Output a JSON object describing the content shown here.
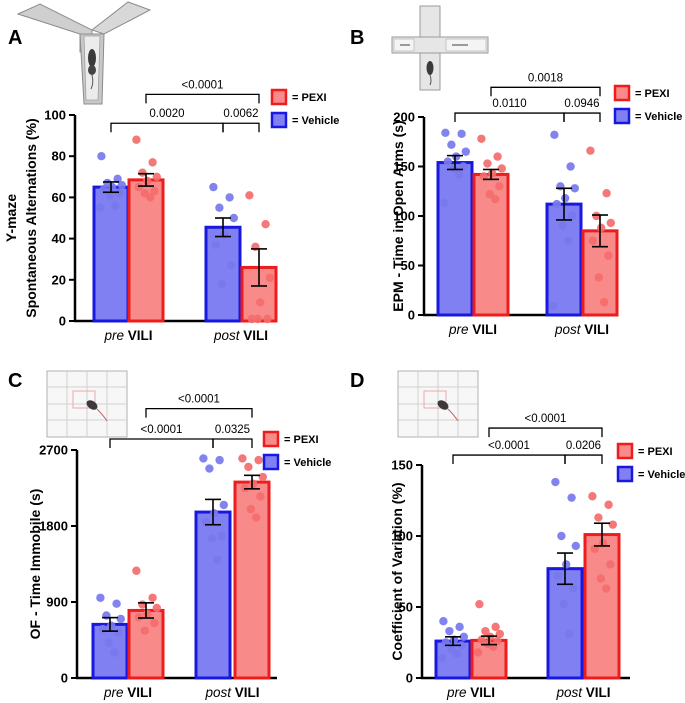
{
  "colors": {
    "vehicle_fill": "#8080f2",
    "vehicle_edge": "#1818e0",
    "vehicle_dot": "#7878ee",
    "pexi_fill": "#f88a8a",
    "pexi_edge": "#ee1c1c",
    "pexi_dot": "#f46c6c"
  },
  "chart_data": [
    {
      "panel": "A",
      "type": "bar",
      "ylabel_lines": [
        "Y-maze",
        "Spontaneous Alternations (%)"
      ],
      "ylim": [
        0,
        100
      ],
      "yticks": [
        0,
        20,
        40,
        60,
        80,
        100
      ],
      "groups": [
        {
          "pre": "pre",
          "post": "VILI"
        },
        {
          "pre": "post",
          "post": "VILI"
        }
      ],
      "series": [
        {
          "name": "Vehicle",
          "legend": "= Vehicle",
          "means": [
            65,
            45.5
          ],
          "sems": [
            2.5,
            4.5
          ],
          "points": [
            [
              80,
              69,
              67,
              66,
              65,
              64,
              62,
              61,
              56,
              55
            ],
            [
              65,
              60,
              55,
              50,
              42,
              37,
              27,
              18
            ]
          ]
        },
        {
          "name": "PEXI",
          "legend": "= PEXI",
          "means": [
            68.5,
            26
          ],
          "sems": [
            3,
            9
          ],
          "points": [
            [
              88,
              77,
              72,
              70,
              68,
              65,
              63,
              62,
              60
            ],
            [
              61,
              47,
              36,
              21,
              9,
              0,
              0,
              0
            ]
          ]
        }
      ],
      "comparisons": [
        {
          "label": "0.0020",
          "from": [
            0,
            "Vehicle"
          ],
          "to": [
            1,
            "Vehicle"
          ],
          "y": 96
        },
        {
          "label": "0.0062",
          "from": [
            1,
            "Vehicle"
          ],
          "to": [
            1,
            "PEXI"
          ],
          "y": 96
        },
        {
          "label": "<0.0001",
          "from": [
            0,
            "PEXI"
          ],
          "to": [
            1,
            "PEXI"
          ],
          "y": 110
        }
      ]
    },
    {
      "panel": "B",
      "type": "bar",
      "ylabel_lines": [
        "EPM - Time in Open Arms (s)"
      ],
      "ylim": [
        0,
        200
      ],
      "yticks": [
        0,
        50,
        100,
        150,
        200
      ],
      "groups": [
        {
          "pre": "pre",
          "post": "VILI"
        },
        {
          "pre": "post",
          "post": "VILI"
        }
      ],
      "series": [
        {
          "name": "Vehicle",
          "legend": "= Vehicle",
          "means": [
            154,
            112
          ],
          "sems": [
            7,
            16
          ],
          "points": [
            [
              184,
              183,
              172,
              165,
              160,
              155,
              150,
              148,
              142,
              113
            ],
            [
              182,
              150,
              130,
              128,
              118,
              112,
              100,
              90,
              75,
              9
            ]
          ]
        },
        {
          "name": "PEXI",
          "legend": "= PEXI",
          "means": [
            142,
            85
          ],
          "sems": [
            5,
            16
          ],
          "points": [
            [
              178,
              160,
              153,
              148,
              143,
              140,
              130,
              122,
              117
            ],
            [
              166,
              123,
              100,
              93,
              88,
              75,
              60,
              38,
              13
            ]
          ]
        }
      ],
      "comparisons": [
        {
          "label": "0.0110",
          "from": [
            0,
            "Vehicle"
          ],
          "to": [
            1,
            "Vehicle"
          ],
          "y": 204
        },
        {
          "label": "0.0946",
          "from": [
            1,
            "Vehicle"
          ],
          "to": [
            1,
            "PEXI"
          ],
          "y": 204
        },
        {
          "label": "0.0018",
          "from": [
            0,
            "PEXI"
          ],
          "to": [
            1,
            "PEXI"
          ],
          "y": 230
        }
      ]
    },
    {
      "panel": "C",
      "type": "bar",
      "ylabel_lines": [
        "OF - Time Immobile (s)"
      ],
      "ylim": [
        0,
        2700
      ],
      "yticks": [
        0,
        900,
        1800,
        2700
      ],
      "groups": [
        {
          "pre": "pre",
          "post": "VILI"
        },
        {
          "pre": "post",
          "post": "VILI"
        }
      ],
      "series": [
        {
          "name": "Vehicle",
          "legend": "= Vehicle",
          "means": [
            635,
            1965
          ],
          "sems": [
            80,
            150
          ],
          "points": [
            [
              950,
              880,
              740,
              700,
              620,
              580,
              540,
              420,
              300
            ],
            [
              2600,
              2580,
              2480,
              2050,
              1950,
              1850,
              1680,
              1650,
              1400
            ]
          ]
        },
        {
          "name": "PEXI",
          "legend": "= PEXI",
          "means": [
            800,
            2320
          ],
          "sems": [
            90,
            80
          ],
          "points": [
            [
              1270,
              950,
              870,
              830,
              760,
              720,
              650,
              560
            ],
            [
              2600,
              2580,
              2500,
              2380,
              2300,
              2250,
              2150,
              2000,
              1900
            ]
          ]
        }
      ],
      "comparisons": [
        {
          "label": "<0.0001",
          "from": [
            0,
            "Vehicle"
          ],
          "to": [
            1,
            "Vehicle"
          ],
          "y": 2830
        },
        {
          "label": "0.0325",
          "from": [
            1,
            "Vehicle"
          ],
          "to": [
            1,
            "PEXI"
          ],
          "y": 2830
        },
        {
          "label": "<0.0001",
          "from": [
            0,
            "PEXI"
          ],
          "to": [
            1,
            "PEXI"
          ],
          "y": 3190
        }
      ]
    },
    {
      "panel": "D",
      "type": "bar",
      "ylabel_lines": [
        "Coefficient of Variation (%)"
      ],
      "ylim": [
        0,
        150
      ],
      "yticks": [
        0,
        50,
        100,
        150
      ],
      "groups": [
        {
          "pre": "pre",
          "post": "VILI"
        },
        {
          "pre": "post",
          "post": "VILI"
        }
      ],
      "series": [
        {
          "name": "Vehicle",
          "legend": "= Vehicle",
          "means": [
            26,
            77
          ],
          "sems": [
            3,
            11
          ],
          "points": [
            [
              40,
              36,
              33,
              29,
              27,
              25,
              23,
              20,
              17,
              14
            ],
            [
              138,
              127,
              100,
              93,
              80,
              72,
              63,
              52,
              31
            ]
          ]
        },
        {
          "name": "PEXI",
          "legend": "= PEXI",
          "means": [
            26.5,
            101
          ],
          "sems": [
            3,
            8
          ],
          "points": [
            [
              52,
              36,
              33,
              31,
              29,
              27,
              26,
              24,
              22,
              18
            ],
            [
              128,
              122,
              113,
              108,
              95,
              91,
              80,
              70,
              63
            ]
          ]
        }
      ],
      "comparisons": [
        {
          "label": "<0.0001",
          "from": [
            0,
            "Vehicle"
          ],
          "to": [
            1,
            "Vehicle"
          ],
          "y": 157
        },
        {
          "label": "0.0206",
          "from": [
            1,
            "Vehicle"
          ],
          "to": [
            1,
            "PEXI"
          ],
          "y": 157
        },
        {
          "label": "<0.0001",
          "from": [
            0,
            "PEXI"
          ],
          "to": [
            1,
            "PEXI"
          ],
          "y": 176
        }
      ]
    }
  ]
}
